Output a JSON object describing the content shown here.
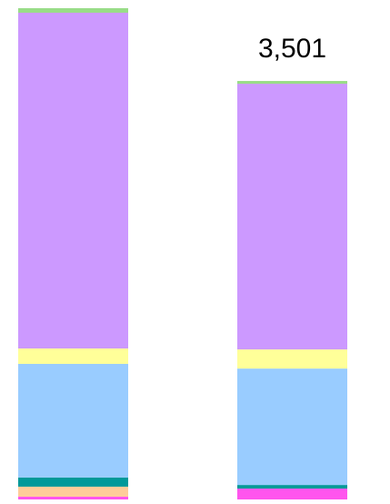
{
  "chart_data": {
    "type": "stacked-bar",
    "categories": [
      null,
      null
    ],
    "series": [
      {
        "color": "#ff55ee",
        "values": [
          23,
          91
        ]
      },
      {
        "color": "#ffcc99",
        "values": [
          84,
          0
        ]
      },
      {
        "color": "#009999",
        "values": [
          76,
          30
        ]
      },
      {
        "color": "#99ccff",
        "values": [
          951,
          974
        ]
      },
      {
        "color": "#ffff99",
        "values": [
          129,
          160
        ]
      },
      {
        "color": "#cc99ff",
        "values": [
          2809,
          2223
        ]
      },
      {
        "color": "#99dd88",
        "values": [
          38,
          23
        ]
      }
    ],
    "value_labels": [
      null,
      "3,501"
    ]
  }
}
